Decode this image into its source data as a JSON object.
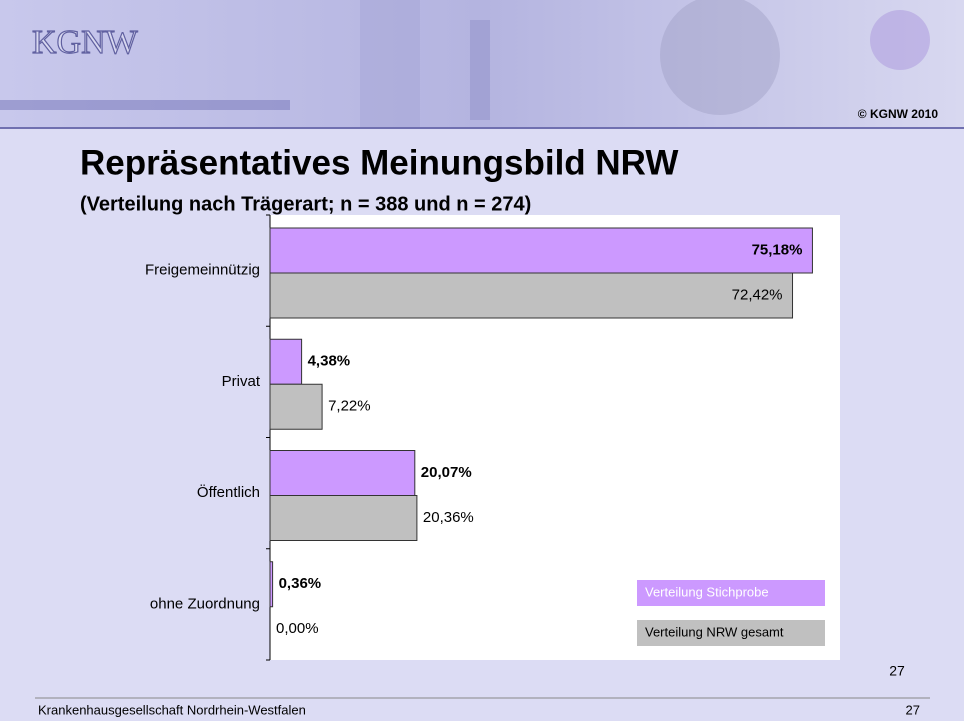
{
  "header": {
    "logo": "KGNW",
    "copyright": "© KGNW 2010"
  },
  "chart_data": {
    "type": "bar",
    "orientation": "horizontal",
    "title": "Repräsentatives Meinungsbild NRW",
    "subtitle": "(Verteilung nach Trägerart; n = 388 und n = 274)",
    "categories": [
      "Freigemeinnützig",
      "Privat",
      "Öffentlich",
      "ohne Zuordnung"
    ],
    "series": [
      {
        "name": "Verteilung Stichprobe",
        "color": "#cc99ff",
        "values": [
          75.18,
          4.38,
          20.07,
          0.36
        ],
        "value_labels": [
          "75,18%",
          "4,38%",
          "20,07%",
          "0,36%"
        ]
      },
      {
        "name": "Verteilung NRW gesamt",
        "color": "#c0c0c0",
        "values": [
          72.42,
          7.22,
          20.36,
          0
        ],
        "value_labels": [
          "72,42%",
          "7,22%",
          "20,36%",
          "0,00%"
        ]
      }
    ],
    "xlim": [
      0,
      79
    ],
    "legend": "lower right"
  },
  "page_number": "27",
  "footer": {
    "organization": "Krankenhausgesellschaft Nordrhein-Westfalen",
    "page": "27"
  }
}
